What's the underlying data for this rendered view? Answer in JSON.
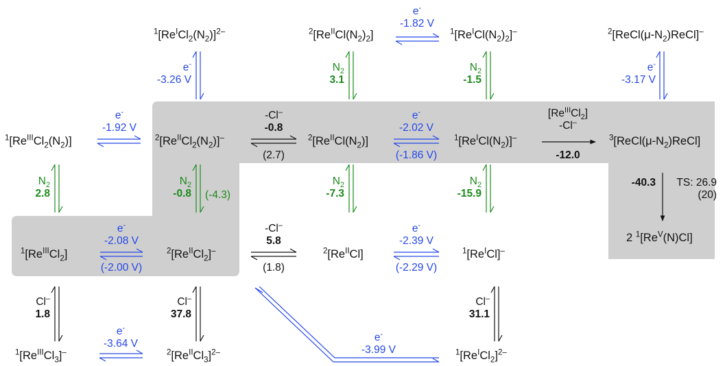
{
  "colors": {
    "electron": "#2447e8",
    "dinitrogen": "#1c8a1c",
    "chloride": "#111111",
    "highlight": "#cfcfcf"
  },
  "species": {
    "s_ReCl2N2_anion_top": [
      "1",
      "[Re",
      "I",
      "Cl",
      "2",
      "(N",
      "2",
      ")]",
      "2–",
      ""
    ],
    "s_ReClN22": [
      "2",
      "[Re",
      "II",
      "Cl(N",
      "2",
      ")",
      "2",
      "]",
      "",
      ""
    ],
    "s_ReClN22_anion": [
      "1",
      "[Re",
      "I",
      "Cl(N",
      "2",
      ")",
      "2",
      "]",
      "–",
      ""
    ],
    "s_bridged_anion": [
      "2",
      "[ReCl(μ-N",
      "",
      "",
      "2",
      ")ReCl]",
      "",
      "",
      "–",
      ""
    ],
    "s_ReCl2N2": [
      "1",
      "[Re",
      "III",
      "Cl",
      "2",
      "(N",
      "2",
      ")]",
      "",
      ""
    ],
    "s_ReCl2N2_minus": [
      "2",
      "[Re",
      "II",
      "Cl",
      "2",
      "(N",
      "2",
      ")]",
      "–",
      ""
    ],
    "s_ReClN2": [
      "2",
      "[Re",
      "II",
      "Cl(N",
      "2",
      ")]",
      "",
      "",
      "",
      ""
    ],
    "s_ReClN2_minus": [
      "1",
      "[Re",
      "I",
      "Cl(N",
      "2",
      ")]",
      "",
      "",
      "–",
      ""
    ],
    "s_bridged": [
      "3",
      "[ReCl(μ-N",
      "",
      "",
      "2",
      ")ReCl]",
      "",
      "",
      "",
      ""
    ],
    "s_ReCl2": [
      "1",
      "[Re",
      "III",
      "Cl",
      "2",
      "]",
      "",
      "",
      "",
      ""
    ],
    "s_ReCl2_minus": [
      "2",
      "[Re",
      "II",
      "Cl",
      "2",
      "]",
      "",
      "",
      "–",
      ""
    ],
    "s_ReCl": [
      "2",
      "[Re",
      "II",
      "Cl]",
      "",
      "",
      "",
      "",
      "",
      ""
    ],
    "s_ReCl_minus": [
      "1",
      "[Re",
      "I",
      "Cl]",
      "",
      "",
      "",
      "",
      "–",
      ""
    ],
    "s_nitride_prefix": "2",
    "s_nitride": [
      "1",
      "[Re",
      "V",
      "(N)Cl]",
      "",
      "",
      "",
      "",
      "",
      ""
    ],
    "s_ReCl3_minus": [
      "1",
      "[Re",
      "III",
      "Cl",
      "3",
      "]",
      "",
      "",
      "–",
      ""
    ],
    "s_ReCl3_2minus": [
      "2",
      "[Re",
      "II",
      "Cl",
      "3",
      "]",
      "",
      "",
      "2–",
      ""
    ],
    "s_ReCl2_2minus": [
      "1",
      "[Re",
      "I",
      "Cl",
      "2",
      "]",
      "",
      "",
      "2–",
      ""
    ]
  },
  "labels": {
    "e_sym": "e",
    "e_sup": "-",
    "N_sym": "N",
    "N_sub": "2",
    "Cl_sym": "Cl",
    "Cl_sup": "–",
    "mCl_sym": "-Cl",
    "mCl_sup": "–",
    "e_top_mid": "-1.82 V",
    "e_top_left": "-3.26 V",
    "e_top_right": "-3.17 V",
    "e_row2_left": "-1.92 V",
    "e_row2_mid": "-2.02 V",
    "e_row2_mid_rev": "(-1.86 V)",
    "e_row4_left": "-2.08 V",
    "e_row4_left_rev": "(-2.00 V)",
    "e_row4_mid": "-2.39 V",
    "e_row4_mid_rev": "(-2.29 V)",
    "e_bottom_left": "-3.64 V",
    "e_bottom_diag": "-3.99 V",
    "n2_top_mid": "3.1",
    "n2_top_right": "-1.5",
    "n2_mid_left": "2.8",
    "n2_mid_2": "-0.8",
    "n2_mid_2_rev": "(-4.3)",
    "n2_mid_3": "-7.3",
    "n2_mid_4": "-15.9",
    "cl_row2": "-0.8",
    "cl_row2_rev": "(2.7)",
    "cl_row4": "5.8",
    "cl_row4_rev": "(1.8)",
    "cl_bottom_left": "1.8",
    "cl_bottom_2": "37.8",
    "cl_bottom_right": "31.1",
    "recl2_reagent_a": "[Re",
    "recl2_reagent_b": "III",
    "recl2_reagent_c": "Cl",
    "recl2_reagent_d": "2",
    "recl2_reagent_e": "]",
    "recl2_minus_cl": "-Cl",
    "recl2_minus_cl_sup": "–",
    "recl2_energy": "-12.0",
    "split_energy": "-40.3",
    "ts_text": "TS: 26.9",
    "ts_rev": "(20)"
  }
}
